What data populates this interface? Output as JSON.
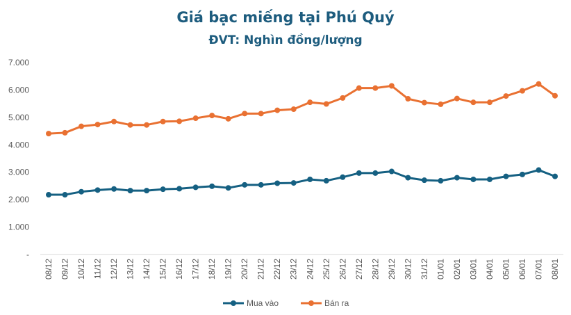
{
  "chart_data": {
    "type": "line",
    "title": "Giá bạc miếng tại Phú Quý",
    "subtitle": "ĐVT: Nghìn đồng/lượng",
    "xlabel": "",
    "ylabel": "",
    "ylim": [
      0,
      7000
    ],
    "yticks": [
      0,
      1000,
      2000,
      3000,
      4000,
      5000,
      6000,
      7000
    ],
    "ytick_labels": [
      "-",
      "1.000",
      "2.000",
      "3.000",
      "4.000",
      "5.000",
      "6.000",
      "7.000"
    ],
    "grid": false,
    "legend_position": "bottom",
    "categories": [
      "08/12",
      "09/12",
      "10/12",
      "11/12",
      "12/12",
      "13/12",
      "14/12",
      "15/12",
      "16/12",
      "17/12",
      "18/12",
      "19/12",
      "20/12",
      "21/12",
      "22/12",
      "23/12",
      "24/12",
      "25/12",
      "26/12",
      "27/12",
      "28/12",
      "29/12",
      "30/12",
      "31/12",
      "01/01",
      "02/01",
      "03/01",
      "04/01",
      "05/01",
      "06/01",
      "07/01",
      "08/01"
    ],
    "series": [
      {
        "name": "Mua vào",
        "color": "#156082",
        "values": [
          2180,
          2180,
          2290,
          2350,
          2390,
          2330,
          2330,
          2380,
          2400,
          2450,
          2490,
          2430,
          2540,
          2540,
          2600,
          2610,
          2740,
          2690,
          2820,
          2970,
          2970,
          3030,
          2800,
          2710,
          2690,
          2800,
          2740,
          2740,
          2850,
          2920,
          3080,
          2850
        ]
      },
      {
        "name": "Bán ra",
        "color": "#e97132",
        "values": [
          4410,
          4440,
          4675,
          4740,
          4850,
          4725,
          4725,
          4850,
          4860,
          4970,
          5070,
          4950,
          5140,
          5140,
          5260,
          5300,
          5550,
          5490,
          5710,
          6070,
          6070,
          6150,
          5680,
          5540,
          5480,
          5690,
          5550,
          5550,
          5780,
          5970,
          6220,
          5790
        ]
      }
    ]
  }
}
